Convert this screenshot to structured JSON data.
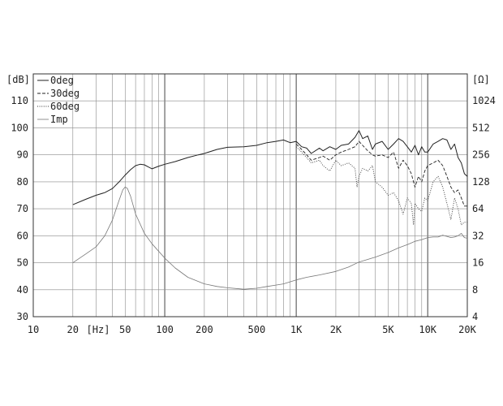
{
  "chart_data": {
    "type": "line",
    "x_scale": "log",
    "xlim": [
      10,
      20000
    ],
    "ylim": [
      30,
      120
    ],
    "ylim_right": [
      4,
      2048
    ],
    "y_right_scale": "log2",
    "grid": true,
    "legend_position": "top-left",
    "ylabel": "[dB]",
    "ylabel_right": "[Ω]",
    "xlabel_unit": "[Hz]",
    "x_ticks": [
      {
        "value": 10,
        "label": "10"
      },
      {
        "value": 20,
        "label": "20"
      },
      {
        "value": 50,
        "label": "50"
      },
      {
        "value": 100,
        "label": "100"
      },
      {
        "value": 200,
        "label": "200"
      },
      {
        "value": 500,
        "label": "500"
      },
      {
        "value": 1000,
        "label": "1K"
      },
      {
        "value": 2000,
        "label": "2K"
      },
      {
        "value": 5000,
        "label": "5K"
      },
      {
        "value": 10000,
        "label": "10K"
      },
      {
        "value": 20000,
        "label": "20K"
      }
    ],
    "y_ticks": [
      30,
      40,
      50,
      60,
      70,
      80,
      90,
      100,
      110
    ],
    "y_right_ticks": [
      4,
      8,
      16,
      32,
      64,
      128,
      256,
      512,
      1024
    ],
    "legend": [
      "0deg",
      "30deg",
      "60deg",
      "Imp"
    ],
    "series": [
      {
        "name": "0deg",
        "style": "solid",
        "axis": "left",
        "x": [
          20,
          25,
          30,
          35,
          40,
          45,
          50,
          55,
          60,
          65,
          70,
          75,
          80,
          90,
          100,
          120,
          150,
          180,
          200,
          250,
          300,
          400,
          500,
          600,
          700,
          800,
          900,
          1000,
          1100,
          1200,
          1300,
          1500,
          1600,
          1800,
          2000,
          2200,
          2500,
          2800,
          3000,
          3200,
          3500,
          3800,
          4000,
          4500,
          5000,
          5500,
          6000,
          6500,
          7000,
          7500,
          8000,
          8500,
          9000,
          9500,
          10000,
          11000,
          12000,
          13000,
          14000,
          15000,
          16000,
          17000,
          18000,
          19000,
          20000
        ],
        "y": [
          71.5,
          73.5,
          75,
          76,
          77.5,
          80,
          82.5,
          84.5,
          86,
          86.5,
          86.3,
          85.5,
          84.8,
          85.8,
          86.5,
          87.5,
          89,
          90,
          90.5,
          92,
          92.8,
          93,
          93.5,
          94.5,
          95,
          95.5,
          94.5,
          95,
          93,
          92.5,
          90.5,
          92.5,
          91.5,
          93,
          92,
          93.5,
          94,
          96.5,
          99,
          96,
          97,
          92,
          94,
          95,
          92,
          94,
          96,
          95,
          93,
          91,
          93.5,
          90,
          93,
          91,
          91,
          94,
          95,
          96,
          95.5,
          92,
          94,
          89,
          87,
          83,
          82
        ]
      },
      {
        "name": "30deg",
        "style": "dashed",
        "axis": "left",
        "x": [
          1000,
          1100,
          1200,
          1300,
          1500,
          1600,
          1800,
          2000,
          2200,
          2500,
          2800,
          3000,
          3200,
          3500,
          3800,
          4000,
          4500,
          5000,
          5500,
          6000,
          6500,
          7000,
          7500,
          8000,
          8500,
          9000,
          9500,
          10000,
          11000,
          12000,
          13000,
          14000,
          15000,
          16000,
          17000,
          18000,
          19000,
          20000
        ],
        "y": [
          94,
          92,
          90,
          88,
          89,
          89.5,
          88,
          90,
          91,
          92,
          93,
          95,
          93.5,
          91.5,
          90,
          89.5,
          90,
          89,
          91,
          85,
          88,
          86,
          83,
          78,
          82,
          80,
          84,
          86,
          87,
          88,
          86,
          82,
          78,
          76,
          77,
          74,
          71,
          71
        ]
      },
      {
        "name": "60deg",
        "style": "dotted",
        "axis": "left",
        "x": [
          1000,
          1100,
          1200,
          1300,
          1500,
          1600,
          1800,
          2000,
          2200,
          2500,
          2800,
          2900,
          3000,
          3200,
          3500,
          3800,
          4000,
          4500,
          5000,
          5500,
          6000,
          6500,
          7000,
          7500,
          7800,
          8000,
          8500,
          9000,
          9500,
          10000,
          11000,
          12000,
          13000,
          14000,
          15000,
          16000,
          17000,
          18000,
          19000,
          20000
        ],
        "y": [
          93,
          91,
          89,
          87,
          88,
          86,
          84,
          88,
          86,
          87,
          85,
          78,
          82,
          85,
          84,
          86,
          80,
          78,
          75,
          76,
          73,
          68,
          74,
          72,
          64,
          72,
          70,
          69,
          74,
          73,
          80,
          82,
          78,
          72,
          66,
          74,
          70,
          64,
          65,
          65
        ]
      },
      {
        "name": "Imp",
        "style": "thin",
        "axis": "right",
        "x": [
          20,
          25,
          30,
          35,
          40,
          45,
          48,
          50,
          52,
          55,
          60,
          70,
          80,
          100,
          120,
          150,
          200,
          250,
          300,
          400,
          500,
          600,
          700,
          800,
          1000,
          1200,
          1500,
          2000,
          2500,
          3000,
          4000,
          5000,
          6000,
          7000,
          8000,
          9000,
          10000,
          11000,
          12000,
          13000,
          14000,
          15000,
          16000,
          17000,
          18000,
          19000,
          20000
        ],
        "y": [
          16,
          20,
          24,
          32,
          48,
          80,
          104,
          112,
          108,
          88,
          56,
          34,
          26,
          18,
          14,
          11,
          9.3,
          8.7,
          8.4,
          8.1,
          8.3,
          8.7,
          9.0,
          9.3,
          10.3,
          11,
          11.7,
          12.8,
          14.3,
          16.3,
          18.5,
          20.8,
          23.4,
          25.5,
          27.7,
          29,
          30.5,
          31,
          31,
          32.5,
          31.5,
          30.5,
          31,
          32,
          34,
          30.5,
          30
        ]
      }
    ]
  }
}
